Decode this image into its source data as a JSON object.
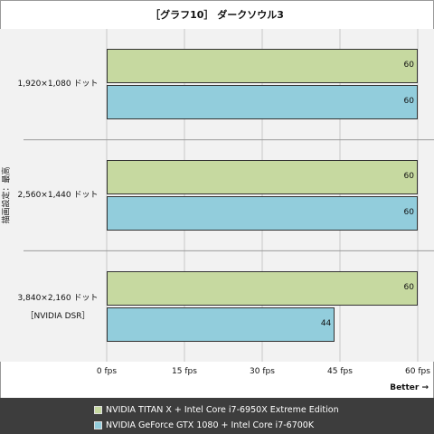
{
  "chart_data": {
    "type": "bar",
    "orientation": "horizontal",
    "title": "［グラフ10］ ダークソウル3",
    "ylabel": "描画設定：最高",
    "better_label": "Better →",
    "categories": [
      {
        "label": "1,920×1,080 ドット",
        "sublabel": ""
      },
      {
        "label": "2,560×1,440 ドット",
        "sublabel": ""
      },
      {
        "label": "3,840×2,160 ドット",
        "sublabel": "［NVIDIA DSR］"
      }
    ],
    "series": [
      {
        "name": "NVIDIA TITAN X + Intel Core i7-6950X Extreme Edition",
        "color": "#c6d9a0",
        "values": [
          60,
          60,
          60
        ]
      },
      {
        "name": "NVIDIA GeForce GTX 1080 + Intel Core i7-6700K",
        "color": "#92cddc",
        "values": [
          60,
          60,
          44
        ]
      }
    ],
    "xlim": [
      0,
      60
    ],
    "x_ticks": [
      {
        "value": 0,
        "label": "0 fps"
      },
      {
        "value": 15,
        "label": "15 fps"
      },
      {
        "value": 30,
        "label": "30 fps"
      },
      {
        "value": 45,
        "label": "45 fps"
      },
      {
        "value": 60,
        "label": "60 fps"
      }
    ],
    "grid": true,
    "legend_position": "bottom"
  }
}
